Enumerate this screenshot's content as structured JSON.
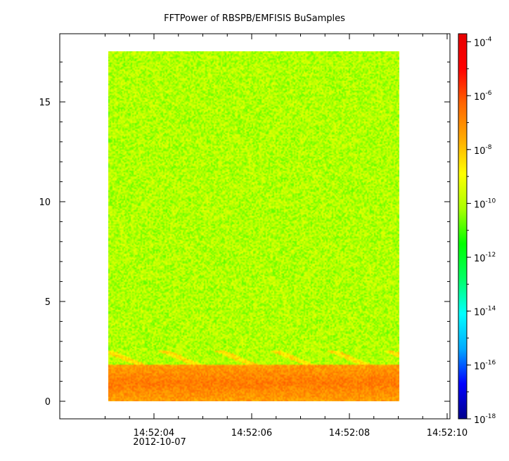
{
  "chart_data": {
    "type": "heatmap",
    "title": "FFTPower of RBSPB/EMFISIS  BuSamples",
    "x_axis": {
      "ticks": [
        "14:52:04",
        "14:52:06",
        "14:52:08",
        "14:52:10"
      ],
      "date_label": "2012-10-07"
    },
    "y_axis": {
      "ticks": [
        0,
        5,
        10,
        15
      ],
      "range": [
        0,
        17.5
      ]
    },
    "colorbar": {
      "scale": "log",
      "tick_bases": [
        "10",
        "10",
        "10",
        "10",
        "10",
        "10",
        "10",
        "10"
      ],
      "tick_exponents": [
        "-4",
        "-6",
        "-8",
        "-10",
        "-12",
        "-14",
        "-16",
        "-18"
      ],
      "range_log10": [
        -18,
        -3.7
      ],
      "colors": [
        "#00008b",
        "#0000ff",
        "#00aaff",
        "#00ffff",
        "#00ff66",
        "#00ff00",
        "#aaff00",
        "#ffff00",
        "#ffaa00",
        "#ff6600",
        "#ff0000",
        "#e60000"
      ]
    },
    "data_region": {
      "time_range": [
        "14:52:03",
        "14:52:09"
      ],
      "freq_range": [
        0,
        17.5
      ]
    },
    "features": {
      "background_log10_power": -10,
      "low_band": {
        "freq_range": [
          0,
          1.8
        ],
        "log10_power": -7.5
      },
      "rising_tones": {
        "freq_range": [
          1.8,
          2.5
        ],
        "log10_power": -8.5
      }
    }
  }
}
